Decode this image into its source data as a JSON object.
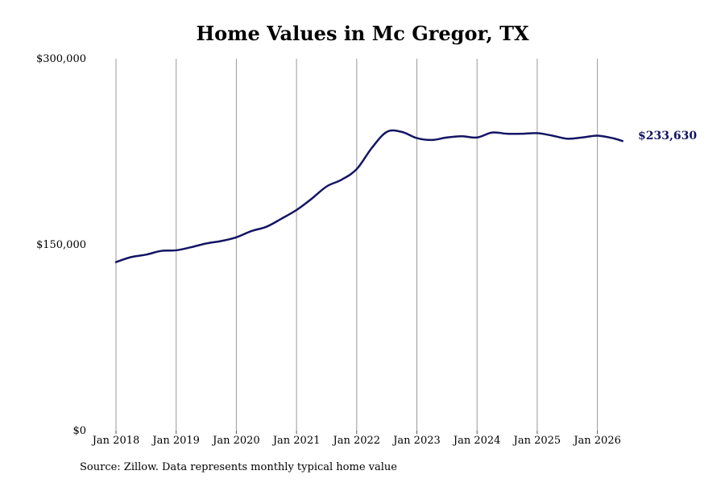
{
  "chart_data": {
    "type": "line",
    "title": "Home Values in Mc Gregor, TX",
    "source": "Source: Zillow. Data represents monthly typical home value",
    "xlabel": "",
    "ylabel": "",
    "ylim": [
      0,
      300000
    ],
    "yticks": [
      {
        "value": 0,
        "label": "$0"
      },
      {
        "value": 150000,
        "label": "$150,000"
      },
      {
        "value": 300000,
        "label": "$300,000"
      }
    ],
    "xticks": [
      {
        "value": "2018-01",
        "label": "Jan 2018"
      },
      {
        "value": "2019-01",
        "label": "Jan 2019"
      },
      {
        "value": "2020-01",
        "label": "Jan 2020"
      },
      {
        "value": "2021-01",
        "label": "Jan 2021"
      },
      {
        "value": "2022-01",
        "label": "Jan 2022"
      },
      {
        "value": "2023-01",
        "label": "Jan 2023"
      },
      {
        "value": "2024-01",
        "label": "Jan 2024"
      },
      {
        "value": "2025-01",
        "label": "Jan 2025"
      },
      {
        "value": "2026-01",
        "label": "Jan 2026"
      }
    ],
    "grid": "vertical",
    "line_color": "#141464",
    "series": [
      {
        "end_label": "$233,630",
        "points": [
          {
            "x": "2018-01",
            "y": 136000
          },
          {
            "x": "2018-04",
            "y": 140000
          },
          {
            "x": "2018-07",
            "y": 142000
          },
          {
            "x": "2018-10",
            "y": 145000
          },
          {
            "x": "2019-01",
            "y": 145500
          },
          {
            "x": "2019-04",
            "y": 148000
          },
          {
            "x": "2019-07",
            "y": 151000
          },
          {
            "x": "2019-10",
            "y": 153000
          },
          {
            "x": "2020-01",
            "y": 156000
          },
          {
            "x": "2020-04",
            "y": 161000
          },
          {
            "x": "2020-07",
            "y": 164500
          },
          {
            "x": "2020-10",
            "y": 171000
          },
          {
            "x": "2021-01",
            "y": 178000
          },
          {
            "x": "2021-04",
            "y": 187000
          },
          {
            "x": "2021-07",
            "y": 197000
          },
          {
            "x": "2021-10",
            "y": 202500
          },
          {
            "x": "2022-01",
            "y": 211000
          },
          {
            "x": "2022-04",
            "y": 228000
          },
          {
            "x": "2022-07",
            "y": 241000
          },
          {
            "x": "2022-10",
            "y": 241000
          },
          {
            "x": "2023-01",
            "y": 236000
          },
          {
            "x": "2023-04",
            "y": 234500
          },
          {
            "x": "2023-07",
            "y": 236500
          },
          {
            "x": "2023-10",
            "y": 237500
          },
          {
            "x": "2024-01",
            "y": 236500
          },
          {
            "x": "2024-04",
            "y": 240500
          },
          {
            "x": "2024-07",
            "y": 239500
          },
          {
            "x": "2024-10",
            "y": 239500
          },
          {
            "x": "2025-01",
            "y": 240000
          },
          {
            "x": "2025-04",
            "y": 238000
          },
          {
            "x": "2025-07",
            "y": 235500
          },
          {
            "x": "2025-10",
            "y": 236500
          },
          {
            "x": "2026-01",
            "y": 238000
          },
          {
            "x": "2026-04",
            "y": 236000
          },
          {
            "x": "2026-06",
            "y": 233630
          }
        ]
      }
    ]
  }
}
